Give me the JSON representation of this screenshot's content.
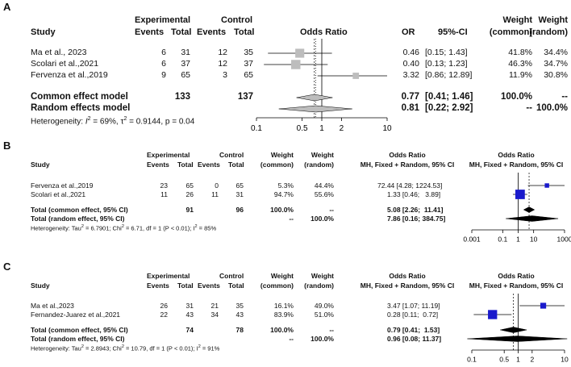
{
  "colors": {
    "square_a": "#bdbdbd",
    "square_bc": "#1a1acc",
    "diamond_a": "#bdbdbd",
    "diamond_bc": "#000000",
    "line": "#000000"
  },
  "panelA": {
    "label": "A",
    "hdr": {
      "study": "Study",
      "exp": "Experimental",
      "ctl": "Control",
      "events": "Events",
      "total": "Total",
      "or_title": "Odds Ratio",
      "or": "OR",
      "ci": "95%-CI",
      "weight": "Weight",
      "common": "(common)",
      "random": "(random)"
    },
    "rows": [
      {
        "study": "Ma et al., 2023",
        "e_ev": "6",
        "e_tot": "31",
        "c_ev": "12",
        "c_tot": "35",
        "or": "0.46",
        "ci": "[0.15; 1.43]",
        "w_common": "41.8%",
        "w_random": "34.4%"
      },
      {
        "study": "Scolari et al.,2021",
        "e_ev": "6",
        "e_tot": "37",
        "c_ev": "12",
        "c_tot": "37",
        "or": "0.40",
        "ci": "[0.13; 1.23]",
        "w_common": "46.3%",
        "w_random": "34.7%"
      },
      {
        "study": "Fervenza et al.,2019",
        "e_ev": "9",
        "e_tot": "65",
        "c_ev": "3",
        "c_tot": "65",
        "or": "3.32",
        "ci": "[0.86; 12.89]",
        "w_common": "11.9%",
        "w_random": "30.8%"
      }
    ],
    "common": {
      "label": "Common effect model",
      "e_tot": "133",
      "c_tot": "137",
      "or": "0.77",
      "ci": "[0.41; 1.46]",
      "w_common": "100.0%",
      "w_random": "--"
    },
    "random": {
      "label": "Random effects model",
      "or": "0.81",
      "ci": "[0.22; 2.92]",
      "w_common": "--",
      "w_random": "100.0%"
    },
    "het_pre": "Heterogeneity: ",
    "het_i2": "I",
    "het_i2_sup": "2",
    "het_mid": " = 69%, τ",
    "het_tau_sup": "2",
    "het_post": " = 0.9144, p = 0.04"
  },
  "panelB": {
    "label": "B",
    "hdr": {
      "study": "Study",
      "exp": "Experimental",
      "ctl": "Control",
      "events": "Events",
      "total": "Total",
      "weight": "Weight",
      "common": "(common)",
      "random": "(random)",
      "or_title": "Odds Ratio",
      "mh": "MH, Fixed + Random, 95% CI"
    },
    "rows": [
      {
        "study": "Fervenza et al.,2019",
        "e_ev": "23",
        "e_tot": "65",
        "c_ev": "0",
        "c_tot": "65",
        "w_common": "5.3%",
        "w_random": "44.4%",
        "or_ci": "72.44 [4.28; 1224.53]"
      },
      {
        "study": "Scolari et al.,2021",
        "e_ev": "11",
        "e_tot": "26",
        "c_ev": "11",
        "c_tot": "31",
        "w_common": "94.7%",
        "w_random": "55.6%",
        "or_ci": "1.33 [0.46;   3.89]"
      }
    ],
    "common": {
      "label": "Total (common effect, 95% CI)",
      "e_tot": "91",
      "c_tot": "96",
      "w_common": "100.0%",
      "w_random": "--",
      "or_ci": "5.08 [2.26;  11.41]"
    },
    "random": {
      "label": "Total (random effect, 95% CI)",
      "w_common": "--",
      "w_random": "100.0%",
      "or_ci": "7.86 [0.16; 384.75]"
    },
    "het_pre": "Heterogeneity: Tau",
    "het_sup1": "2",
    "het_mid": " = 6.7901; Chi",
    "het_sup2": "2",
    "het_mid2": " = 6.71, df = 1 (P < 0.01); I",
    "het_sup3": "2",
    "het_post": " = 85%"
  },
  "panelC": {
    "label": "C",
    "hdr": {
      "study": "Study",
      "exp": "Experimental",
      "ctl": "Control",
      "events": "Events",
      "total": "Total",
      "weight": "Weight",
      "common": "(common)",
      "random": "(random)",
      "or_title": "Odds Ratio",
      "mh": "MH, Fixed + Random, 95% CI"
    },
    "rows": [
      {
        "study": "Ma et al.,2023",
        "e_ev": "26",
        "e_tot": "31",
        "c_ev": "21",
        "c_tot": "35",
        "w_common": "16.1%",
        "w_random": "49.0%",
        "or_ci": "3.47 [1.07; 11.19]"
      },
      {
        "study": "Fernandez-Juarez et al.,2021",
        "e_ev": "22",
        "e_tot": "43",
        "c_ev": "34",
        "c_tot": "43",
        "w_common": "83.9%",
        "w_random": "51.0%",
        "or_ci": "0.28 [0.11;  0.72]"
      }
    ],
    "common": {
      "label": "Total (common effect, 95% CI)",
      "e_tot": "74",
      "c_tot": "78",
      "w_common": "100.0%",
      "w_random": "--",
      "or_ci": "0.79 [0.41;  1.53]"
    },
    "random": {
      "label": "Total (random effect, 95% CI)",
      "w_common": "--",
      "w_random": "100.0%",
      "or_ci": "0.96 [0.08; 11.37]"
    },
    "het_pre": "Heterogeneity: Tau",
    "het_sup1": "2",
    "het_mid": " = 2.8943; Chi",
    "het_sup2": "2",
    "het_mid2": " = 10.79, df = 1 (P < 0.01); I",
    "het_sup3": "2",
    "het_post": " = 91%"
  },
  "chart_data": [
    {
      "type": "forest",
      "panel": "A",
      "scale": "log",
      "xlim": [
        0.1,
        10
      ],
      "ticks": [
        "0.1",
        "0.5",
        "1",
        "2",
        "10"
      ],
      "studies": [
        {
          "name": "Ma et al., 2023",
          "or": 0.46,
          "lo": 0.15,
          "hi": 1.43,
          "weight": 41.8
        },
        {
          "name": "Scolari et al.,2021",
          "or": 0.4,
          "lo": 0.13,
          "hi": 1.23,
          "weight": 46.3
        },
        {
          "name": "Fervenza et al.,2019",
          "or": 3.32,
          "lo": 0.86,
          "hi": 12.89,
          "weight": 11.9
        }
      ],
      "common": {
        "or": 0.77,
        "lo": 0.41,
        "hi": 1.46
      },
      "random": {
        "or": 0.81,
        "lo": 0.22,
        "hi": 2.92
      }
    },
    {
      "type": "forest",
      "panel": "B",
      "scale": "log",
      "xlim": [
        0.001,
        1000
      ],
      "ticks": [
        "0.001",
        "0.1",
        "1",
        "10",
        "1000"
      ],
      "studies": [
        {
          "name": "Fervenza et al.,2019",
          "or": 72.44,
          "lo": 4.28,
          "hi": 1224.53,
          "weight": 5.3
        },
        {
          "name": "Scolari et al.,2021",
          "or": 1.33,
          "lo": 0.46,
          "hi": 3.89,
          "weight": 94.7
        }
      ],
      "common": {
        "or": 5.08,
        "lo": 2.26,
        "hi": 11.41
      },
      "random": {
        "or": 7.86,
        "lo": 0.16,
        "hi": 384.75
      }
    },
    {
      "type": "forest",
      "panel": "C",
      "scale": "log",
      "xlim": [
        0.1,
        10
      ],
      "ticks": [
        "0.1",
        "0.5",
        "1",
        "2",
        "10"
      ],
      "studies": [
        {
          "name": "Ma et al.,2023",
          "or": 3.47,
          "lo": 1.07,
          "hi": 11.19,
          "weight": 16.1
        },
        {
          "name": "Fernandez-Juarez et al.,2021",
          "or": 0.28,
          "lo": 0.11,
          "hi": 0.72,
          "weight": 83.9
        }
      ],
      "common": {
        "or": 0.79,
        "lo": 0.41,
        "hi": 1.53
      },
      "random": {
        "or": 0.96,
        "lo": 0.08,
        "hi": 11.37
      }
    }
  ]
}
